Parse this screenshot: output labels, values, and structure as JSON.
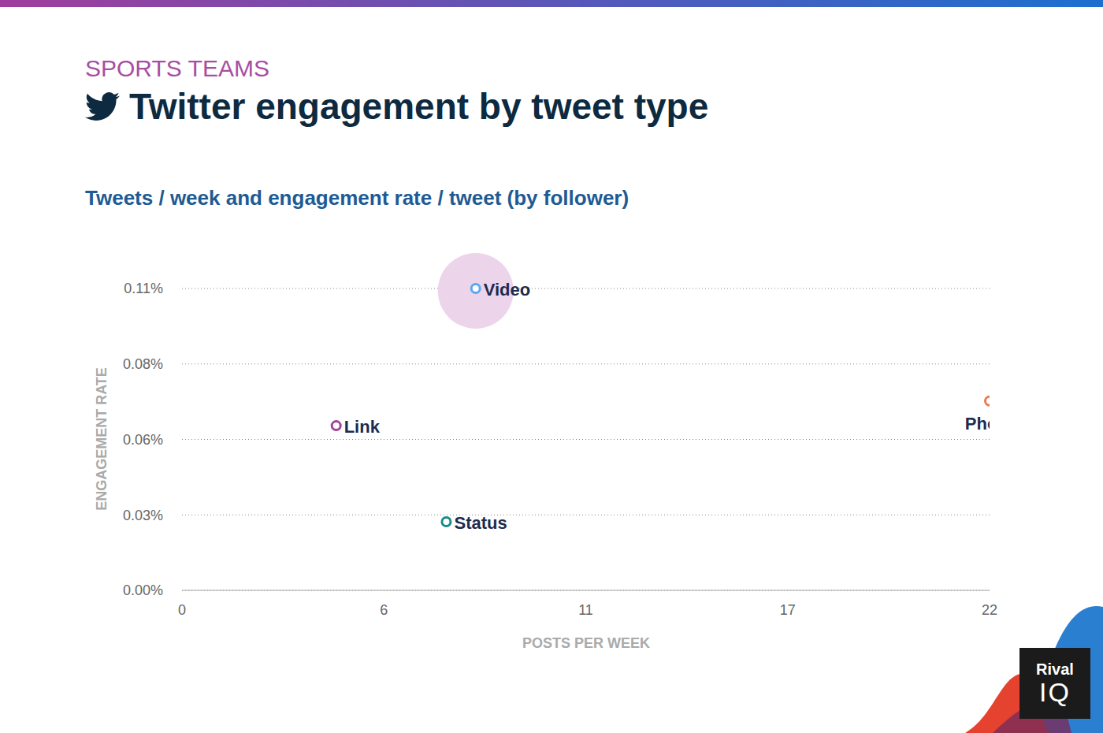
{
  "chart_data": {
    "type": "scatter",
    "supertitle": "SPORTS TEAMS",
    "title": "Twitter engagement by tweet type",
    "subtitle": "Tweets / week and engagement rate / tweet (by follower)",
    "x_label": "POSTS PER WEEK",
    "y_label": "ENGAGEMENT RATE",
    "categories": [
      "Video",
      "Link",
      "Status",
      "Photo"
    ],
    "x": [
      8.0,
      4.2,
      7.2,
      22
    ],
    "values": [
      0.11,
      0.06,
      0.025,
      0.069
    ],
    "colors": [
      "#5aa9f0",
      "#a0449b",
      "#1a8a8a",
      "#ef7a4a"
    ],
    "xlim": [
      0,
      22
    ],
    "xticks": [
      0,
      {
        "value": 5.5,
        "label": "6"
      },
      11,
      {
        "value": 16.5,
        "label": "17"
      },
      22
    ],
    "ylim": [
      0,
      0.11
    ],
    "yticks": [
      {
        "value": 0,
        "label": "0.00%"
      },
      {
        "value": 0.0275,
        "label": "0.03%"
      },
      {
        "value": 0.055,
        "label": "0.06%"
      },
      {
        "value": 0.0825,
        "label": "0.08%"
      },
      {
        "value": 0.11,
        "label": "0.11%"
      }
    ],
    "grid": true,
    "marker": "hollow_circle",
    "annotations": [
      "Rival",
      "IQ"
    ]
  }
}
